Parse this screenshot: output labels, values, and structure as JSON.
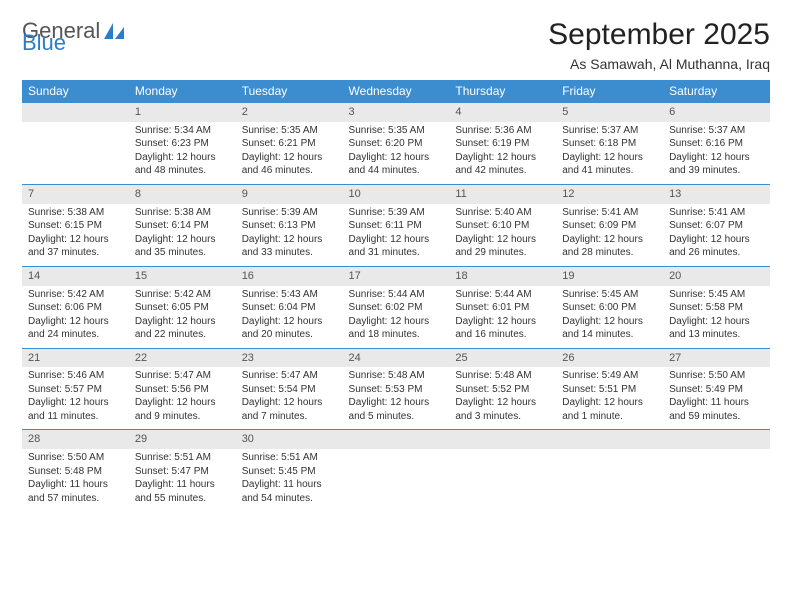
{
  "brand": {
    "name_a": "General",
    "name_b": "Blue"
  },
  "title": "September 2025",
  "location": "As Samawah, Al Muthanna, Iraq",
  "colors": {
    "header_bg": "#3b8dd0",
    "daynum_bg": "#e9e9e9",
    "rule": "#3b8dd0"
  },
  "weekdays": [
    "Sunday",
    "Monday",
    "Tuesday",
    "Wednesday",
    "Thursday",
    "Friday",
    "Saturday"
  ],
  "grid": [
    [
      {
        "blank": true
      },
      {
        "n": "1",
        "sunrise": "5:34 AM",
        "sunset": "6:23 PM",
        "daylight": "12 hours and 48 minutes."
      },
      {
        "n": "2",
        "sunrise": "5:35 AM",
        "sunset": "6:21 PM",
        "daylight": "12 hours and 46 minutes."
      },
      {
        "n": "3",
        "sunrise": "5:35 AM",
        "sunset": "6:20 PM",
        "daylight": "12 hours and 44 minutes."
      },
      {
        "n": "4",
        "sunrise": "5:36 AM",
        "sunset": "6:19 PM",
        "daylight": "12 hours and 42 minutes."
      },
      {
        "n": "5",
        "sunrise": "5:37 AM",
        "sunset": "6:18 PM",
        "daylight": "12 hours and 41 minutes."
      },
      {
        "n": "6",
        "sunrise": "5:37 AM",
        "sunset": "6:16 PM",
        "daylight": "12 hours and 39 minutes."
      }
    ],
    [
      {
        "n": "7",
        "sunrise": "5:38 AM",
        "sunset": "6:15 PM",
        "daylight": "12 hours and 37 minutes."
      },
      {
        "n": "8",
        "sunrise": "5:38 AM",
        "sunset": "6:14 PM",
        "daylight": "12 hours and 35 minutes."
      },
      {
        "n": "9",
        "sunrise": "5:39 AM",
        "sunset": "6:13 PM",
        "daylight": "12 hours and 33 minutes."
      },
      {
        "n": "10",
        "sunrise": "5:39 AM",
        "sunset": "6:11 PM",
        "daylight": "12 hours and 31 minutes."
      },
      {
        "n": "11",
        "sunrise": "5:40 AM",
        "sunset": "6:10 PM",
        "daylight": "12 hours and 29 minutes."
      },
      {
        "n": "12",
        "sunrise": "5:41 AM",
        "sunset": "6:09 PM",
        "daylight": "12 hours and 28 minutes."
      },
      {
        "n": "13",
        "sunrise": "5:41 AM",
        "sunset": "6:07 PM",
        "daylight": "12 hours and 26 minutes."
      }
    ],
    [
      {
        "n": "14",
        "sunrise": "5:42 AM",
        "sunset": "6:06 PM",
        "daylight": "12 hours and 24 minutes."
      },
      {
        "n": "15",
        "sunrise": "5:42 AM",
        "sunset": "6:05 PM",
        "daylight": "12 hours and 22 minutes."
      },
      {
        "n": "16",
        "sunrise": "5:43 AM",
        "sunset": "6:04 PM",
        "daylight": "12 hours and 20 minutes."
      },
      {
        "n": "17",
        "sunrise": "5:44 AM",
        "sunset": "6:02 PM",
        "daylight": "12 hours and 18 minutes."
      },
      {
        "n": "18",
        "sunrise": "5:44 AM",
        "sunset": "6:01 PM",
        "daylight": "12 hours and 16 minutes."
      },
      {
        "n": "19",
        "sunrise": "5:45 AM",
        "sunset": "6:00 PM",
        "daylight": "12 hours and 14 minutes."
      },
      {
        "n": "20",
        "sunrise": "5:45 AM",
        "sunset": "5:58 PM",
        "daylight": "12 hours and 13 minutes."
      }
    ],
    [
      {
        "n": "21",
        "sunrise": "5:46 AM",
        "sunset": "5:57 PM",
        "daylight": "12 hours and 11 minutes."
      },
      {
        "n": "22",
        "sunrise": "5:47 AM",
        "sunset": "5:56 PM",
        "daylight": "12 hours and 9 minutes."
      },
      {
        "n": "23",
        "sunrise": "5:47 AM",
        "sunset": "5:54 PM",
        "daylight": "12 hours and 7 minutes."
      },
      {
        "n": "24",
        "sunrise": "5:48 AM",
        "sunset": "5:53 PM",
        "daylight": "12 hours and 5 minutes."
      },
      {
        "n": "25",
        "sunrise": "5:48 AM",
        "sunset": "5:52 PM",
        "daylight": "12 hours and 3 minutes."
      },
      {
        "n": "26",
        "sunrise": "5:49 AM",
        "sunset": "5:51 PM",
        "daylight": "12 hours and 1 minute."
      },
      {
        "n": "27",
        "sunrise": "5:50 AM",
        "sunset": "5:49 PM",
        "daylight": "11 hours and 59 minutes."
      }
    ],
    [
      {
        "n": "28",
        "sunrise": "5:50 AM",
        "sunset": "5:48 PM",
        "daylight": "11 hours and 57 minutes."
      },
      {
        "n": "29",
        "sunrise": "5:51 AM",
        "sunset": "5:47 PM",
        "daylight": "11 hours and 55 minutes."
      },
      {
        "n": "30",
        "sunrise": "5:51 AM",
        "sunset": "5:45 PM",
        "daylight": "11 hours and 54 minutes."
      },
      {
        "blank": true
      },
      {
        "blank": true
      },
      {
        "blank": true
      },
      {
        "blank": true
      }
    ]
  ],
  "labels": {
    "sunrise": "Sunrise: ",
    "sunset": "Sunset: ",
    "daylight": "Daylight: "
  }
}
